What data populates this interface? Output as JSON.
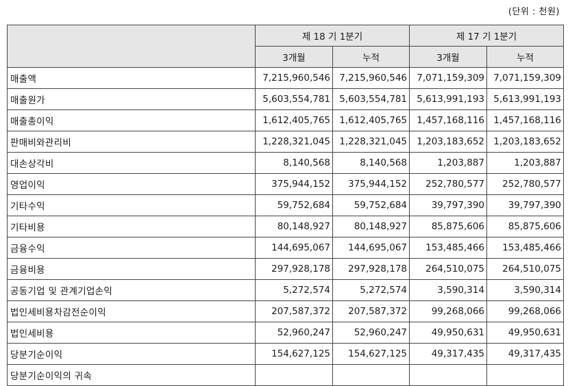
{
  "unit_note": "(단위 : 천원)",
  "header": {
    "period_current": "제 18 기 1분기",
    "period_prior": "제 17 기 1분기",
    "sub_3m": "3개월",
    "sub_cum": "누적"
  },
  "rows": [
    {
      "label": "매출액",
      "v": [
        "7,215,960,546",
        "7,215,960,546",
        "7,071,159,309",
        "7,071,159,309"
      ]
    },
    {
      "label": "매출원가",
      "v": [
        "5,603,554,781",
        "5,603,554,781",
        "5,613,991,193",
        "5,613,991,193"
      ]
    },
    {
      "label": "매출총이익",
      "v": [
        "1,612,405,765",
        "1,612,405,765",
        "1,457,168,116",
        "1,457,168,116"
      ]
    },
    {
      "label": "판매비와관리비",
      "v": [
        "1,228,321,045",
        "1,228,321,045",
        "1,203,183,652",
        "1,203,183,652"
      ]
    },
    {
      "label": "대손상각비",
      "v": [
        "8,140,568",
        "8,140,568",
        "1,203,887",
        "1,203,887"
      ]
    },
    {
      "label": "영업이익",
      "v": [
        "375,944,152",
        "375,944,152",
        "252,780,577",
        "252,780,577"
      ]
    },
    {
      "label": "기타수익",
      "v": [
        "59,752,684",
        "59,752,684",
        "39,797,390",
        "39,797,390"
      ]
    },
    {
      "label": "기타비용",
      "v": [
        "80,148,927",
        "80,148,927",
        "85,875,606",
        "85,875,606"
      ]
    },
    {
      "label": "금융수익",
      "v": [
        "144,695,067",
        "144,695,067",
        "153,485,466",
        "153,485,466"
      ]
    },
    {
      "label": "금융비용",
      "v": [
        "297,928,178",
        "297,928,178",
        "264,510,075",
        "264,510,075"
      ]
    },
    {
      "label": "공동기업 및 관계기업손익",
      "v": [
        "5,272,574",
        "5,272,574",
        "3,590,314",
        "3,590,314"
      ]
    },
    {
      "label": "법인세비용차감전순이익",
      "v": [
        "207,587,372",
        "207,587,372",
        "99,268,066",
        "99,268,066"
      ]
    },
    {
      "label": "법인세비용",
      "v": [
        "52,960,247",
        "52,960,247",
        "49,950,631",
        "49,950,631"
      ]
    },
    {
      "label": "당분기순이익",
      "v": [
        "154,627,125",
        "154,627,125",
        "49,317,435",
        "49,317,435"
      ]
    },
    {
      "label": "당분기순이익의 귀속",
      "v": [
        "",
        "",
        "",
        ""
      ]
    }
  ]
}
